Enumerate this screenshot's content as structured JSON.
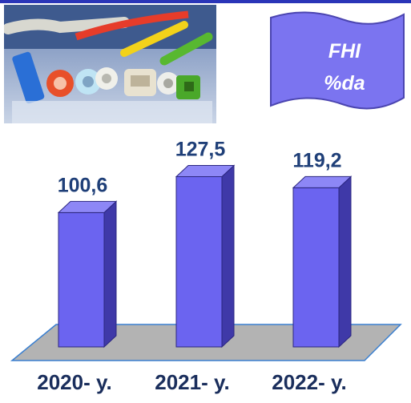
{
  "banner": {
    "line1": "FHI",
    "line2": "%da",
    "color": "#7b74f0"
  },
  "photo": {
    "icon": "rubber-profiles-photo"
  },
  "colors": {
    "bar_front": "#6b64f0",
    "bar_side": "#3f39a8",
    "bar_top": "#8d87f6",
    "floor": "#b3b3b3",
    "accent": "#2a35b8"
  },
  "chart_data": {
    "type": "bar",
    "categories": [
      "2020- y.",
      "2021- y.",
      "2022- y."
    ],
    "values": [
      100.6,
      127.5,
      119.2
    ],
    "value_labels": [
      "100,6",
      "127,5",
      "119,2"
    ],
    "title": "",
    "xlabel": "",
    "ylabel": "",
    "ylim": [
      0,
      135
    ],
    "grid": false
  }
}
